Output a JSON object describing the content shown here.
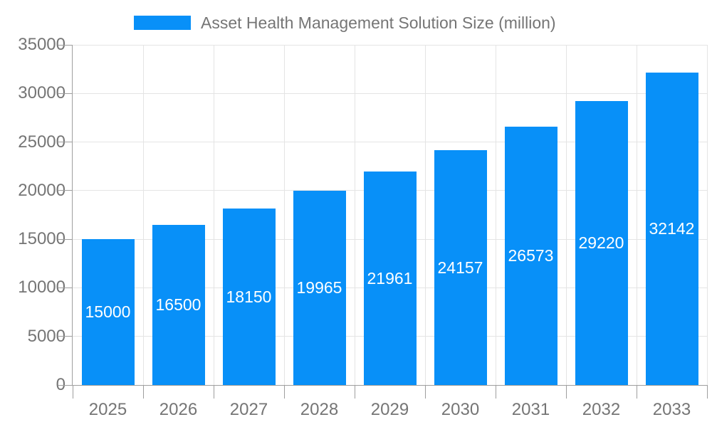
{
  "legend": {
    "label": "Asset Health Management Solution Size (million)"
  },
  "colors": {
    "bar": "#0890f8",
    "grid": "#e4e4e4",
    "axis": "#9e9e9e",
    "tick_text": "#757575",
    "bar_label_text": "#ffffff",
    "background": "#ffffff"
  },
  "chart_data": {
    "type": "bar",
    "title": "Asset Health Management Solution Size (million)",
    "series_name": "Asset Health Management Solution Size (million)",
    "categories": [
      "2025",
      "2026",
      "2027",
      "2028",
      "2029",
      "2030",
      "2031",
      "2032",
      "2033"
    ],
    "values": [
      15000,
      16500,
      18150,
      19965,
      21961,
      24157,
      26573,
      29220,
      32142
    ],
    "bar_value_labels": [
      "15000",
      "16500",
      "18150",
      "19965",
      "21961",
      "24157",
      "26573",
      "29220",
      "32142"
    ],
    "xlabel": "",
    "ylabel": "",
    "ylim": [
      0,
      35000
    ],
    "ytick_step": 5000,
    "yticks": [
      0,
      5000,
      10000,
      15000,
      20000,
      25000,
      30000,
      35000
    ],
    "grid": true,
    "legend_position": "top",
    "bar_labels_visible": true,
    "bar_label_position": "inside-middle"
  }
}
